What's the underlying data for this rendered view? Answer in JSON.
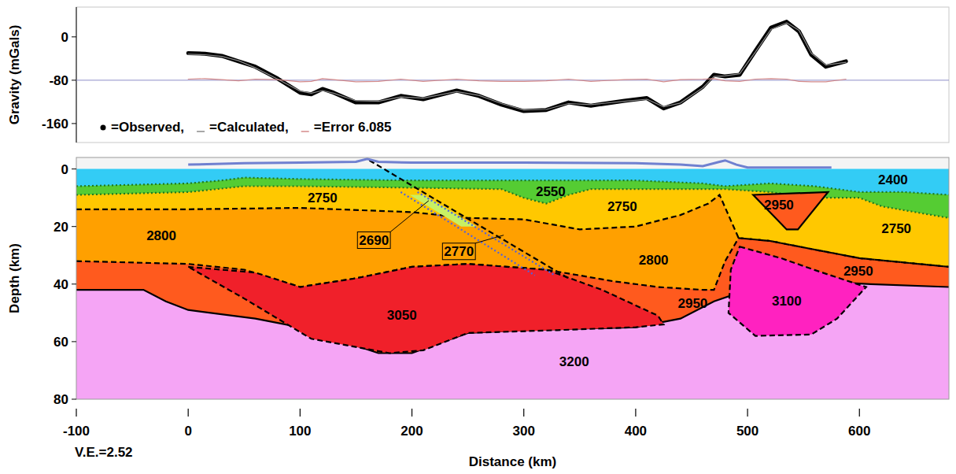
{
  "chart_data": [
    {
      "type": "line",
      "y_label": "Gravity (mGals)",
      "xlim": [
        -100,
        680
      ],
      "ylim": [
        -195,
        55
      ],
      "yticks": [
        0,
        -80,
        -160
      ],
      "tick_labels": "y",
      "legend": "bottom-left",
      "reference_line": -80,
      "x": [
        0,
        15,
        30,
        45,
        60,
        80,
        100,
        110,
        120,
        130,
        150,
        170,
        190,
        210,
        240,
        260,
        280,
        300,
        320,
        340,
        360,
        390,
        410,
        425,
        440,
        460,
        470,
        480,
        493,
        507,
        521,
        535,
        546,
        557,
        570,
        588
      ],
      "series": [
        {
          "name": "=Observed,",
          "color": "#000000",
          "marker": "dot",
          "values": [
            -30,
            -31,
            -35,
            -45,
            -55,
            -77,
            -103,
            -106,
            -96,
            -103,
            -121,
            -121,
            -109,
            -115,
            -99,
            -109,
            -125,
            -137,
            -135,
            -121,
            -127,
            -118,
            -113,
            -132,
            -121,
            -92,
            -70,
            -73,
            -70,
            -26,
            17,
            28,
            10,
            -33,
            -55,
            -45
          ]
        },
        {
          "name": "=Calculated,",
          "color": "#8a8a8a",
          "marker": "none",
          "values": [
            -32,
            -33,
            -36,
            -44,
            -57,
            -78,
            -100,
            -104,
            -99,
            -104,
            -118,
            -119,
            -111,
            -113,
            -101,
            -108,
            -123,
            -135,
            -134,
            -123,
            -125,
            -119,
            -115,
            -129,
            -122,
            -94,
            -73,
            -72,
            -68,
            -28,
            14,
            26,
            12,
            -30,
            -52,
            -47
          ]
        },
        {
          "name": "=Error 6.085",
          "color": "#d48a8a",
          "marker": "none",
          "values": [
            -78,
            -77,
            -79,
            -81,
            -78,
            -79,
            -83,
            -82,
            -77,
            -79,
            -83,
            -82,
            -78,
            -82,
            -78,
            -81,
            -82,
            -82,
            -81,
            -78,
            -82,
            -79,
            -78,
            -83,
            -79,
            -78,
            -77,
            -81,
            -82,
            -78,
            -77,
            -78,
            -82,
            -83,
            -83,
            -78
          ]
        }
      ]
    },
    {
      "type": "section",
      "x_label": "Distance (km)",
      "y_label": "Depth (km)",
      "annotation": "V.E.=2.52",
      "xlim": [
        -100,
        680
      ],
      "xticks": [
        -100,
        0,
        100,
        200,
        300,
        400,
        500,
        600
      ],
      "ylim": [
        -4,
        80
      ],
      "yticks": [
        0,
        20,
        40,
        60,
        80
      ],
      "layers": [
        {
          "color": "#33ccf5",
          "line_style": "none",
          "x": [
            -100,
            680
          ],
          "depth": [
            0,
            0
          ]
        },
        {
          "color": "#55cc33",
          "line_style": "dotted",
          "x": [
            -100,
            0,
            30,
            50,
            100,
            200,
            300,
            400,
            460,
            480,
            520,
            560,
            600,
            640,
            680
          ],
          "depth": [
            6,
            5,
            4,
            3,
            3.5,
            4,
            4,
            4,
            5,
            6,
            5,
            6,
            8,
            8,
            9
          ]
        },
        {
          "color": "#ffc800",
          "line_style": "dotted",
          "x": [
            -100,
            0,
            50,
            100,
            200,
            280,
            300,
            320,
            340,
            360,
            400,
            460,
            480,
            520,
            560,
            600,
            620,
            680
          ],
          "depth": [
            9,
            8,
            6,
            6,
            6.5,
            7,
            10,
            12,
            9,
            7,
            7,
            7,
            7,
            8,
            10,
            10,
            13,
            17
          ]
        },
        {
          "color": "#ffa000",
          "line_style": "dashed",
          "x": [
            -100,
            0,
            100,
            200,
            250,
            300,
            350,
            400,
            440,
            465,
            475,
            492,
            520,
            560,
            600,
            680
          ],
          "depth": [
            14,
            14,
            13.5,
            15,
            17,
            17.5,
            21,
            20,
            16,
            12,
            9,
            24,
            25,
            28,
            31,
            34
          ]
        },
        {
          "color": "#ff5a1e",
          "line_style": "dashed",
          "x": [
            -100,
            0,
            50,
            100,
            150,
            200,
            250,
            320,
            380,
            420,
            460,
            470,
            480,
            492,
            520,
            560,
            600,
            680
          ],
          "depth": [
            32,
            33,
            35,
            41,
            38,
            34,
            33,
            35,
            39,
            41,
            42,
            42,
            32,
            24,
            25,
            28,
            31,
            34
          ]
        },
        {
          "color": "#f5a5f5",
          "line_style": "solid",
          "x": [
            -100,
            -40,
            -20,
            0,
            60,
            100,
            170,
            200,
            250,
            300,
            400,
            440,
            470,
            500,
            560,
            610,
            680
          ],
          "depth": [
            42,
            42,
            46,
            49,
            52,
            55,
            64,
            64,
            57,
            56,
            55,
            52,
            46,
            42,
            39,
            40,
            41
          ]
        }
      ],
      "bodies": [
        {
          "color": "#f0202a",
          "line_style": "dashed",
          "x": [
            0,
            60,
            100,
            150,
            200,
            250,
            320,
            370,
            420,
            425,
            400,
            330,
            250,
            210,
            180,
            110,
            50
          ],
          "depth": [
            34,
            36,
            41,
            38,
            34,
            33,
            35,
            42,
            51,
            54,
            55,
            56,
            57,
            63,
            64,
            59,
            45
          ]
        },
        {
          "color": "#ff22c0",
          "line_style": "dashed",
          "x": [
            493,
            530,
            563,
            606,
            580,
            557,
            507,
            483,
            485
          ],
          "depth": [
            27,
            31,
            35.5,
            41,
            52,
            57.5,
            58,
            50,
            35
          ]
        },
        {
          "color": "#ff5a1e",
          "line_style": "solid",
          "x": [
            505,
            572,
            545,
            535
          ],
          "depth": [
            9,
            8,
            21,
            21
          ]
        },
        {
          "color": "#c8f064",
          "line_style": "none",
          "x": [
            198,
            210,
            258,
            244
          ],
          "depth": [
            9,
            9,
            20,
            20
          ]
        }
      ],
      "lines": [
        {
          "color": "#000000",
          "line_style": "dashed",
          "x": [
            162,
            340
          ],
          "depth": [
            -3,
            38
          ]
        },
        {
          "color": "#5060e0",
          "line_style": "dotted",
          "x": [
            190,
            310
          ],
          "depth": [
            8,
            37
          ]
        },
        {
          "color": "#5060e0",
          "line_style": "dotted",
          "x": [
            205,
            328
          ],
          "depth": [
            8,
            37
          ]
        }
      ],
      "topography": {
        "color": "#7080d0",
        "x": [
          0,
          50,
          100,
          150,
          160,
          170,
          200,
          300,
          400,
          440,
          460,
          475,
          480,
          490,
          500,
          575
        ],
        "depth": [
          -1.5,
          -2,
          -2.2,
          -2.5,
          -3.5,
          -2.5,
          -2.2,
          -2.2,
          -2,
          -1.5,
          -1,
          -2.5,
          -3,
          -1.5,
          -0.5,
          -0.5
        ]
      },
      "labels": [
        {
          "text": "2400",
          "x": 630,
          "depth": 3.6
        },
        {
          "text": "2550",
          "x": 324,
          "depth": 7.7
        },
        {
          "text": "2750",
          "x": 120,
          "depth": 10
        },
        {
          "text": "2750",
          "x": 388,
          "depth": 13
        },
        {
          "text": "2750",
          "x": 633,
          "depth": 20.5
        },
        {
          "text": "2950",
          "x": 528,
          "depth": 12.5
        },
        {
          "text": "2800",
          "x": -24,
          "depth": 23
        },
        {
          "text": "2800",
          "x": 416,
          "depth": 31.5
        },
        {
          "text": "2690",
          "x": 166,
          "depth": 24.6,
          "leader": [
            215,
            11
          ]
        },
        {
          "text": "2770",
          "x": 242,
          "depth": 28.5,
          "leader": [
            282,
            23
          ]
        },
        {
          "text": "2950",
          "x": 599,
          "depth": 35.5
        },
        {
          "text": "2950",
          "x": 451,
          "depth": 46.5
        },
        {
          "text": "3050",
          "x": 191,
          "depth": 50.7
        },
        {
          "text": "3100",
          "x": 535,
          "depth": 45.7
        },
        {
          "text": "3200",
          "x": 345,
          "depth": 67
        }
      ]
    }
  ]
}
